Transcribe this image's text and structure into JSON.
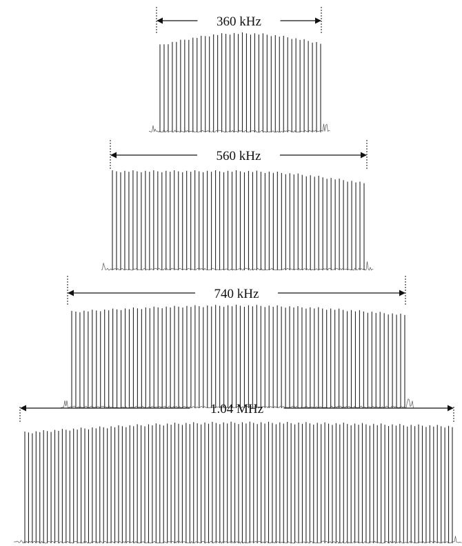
{
  "chart_data": [
    {
      "type": "spectrum",
      "bandwidth_label": "360 kHz",
      "line_count": 40,
      "envelope_start": 0.88,
      "envelope_peak": 1.0,
      "envelope_end": 0.9,
      "grid": false
    },
    {
      "type": "spectrum",
      "bandwidth_label": "560 kHz",
      "line_count": 62,
      "envelope_start": 1.0,
      "envelope_peak": 1.0,
      "envelope_end": 0.88,
      "grid": false
    },
    {
      "type": "spectrum",
      "bandwidth_label": "740 kHz",
      "line_count": 82,
      "envelope_start": 0.94,
      "envelope_peak": 1.0,
      "envelope_end": 0.91,
      "grid": false
    },
    {
      "type": "spectrum",
      "bandwidth_label": "1.04 MHz",
      "line_count": 115,
      "envelope_start": 0.9,
      "envelope_peak": 0.98,
      "envelope_end": 0.95,
      "grid": false
    }
  ],
  "style": {
    "line_color": "#222222",
    "marker_color": "#333333"
  }
}
